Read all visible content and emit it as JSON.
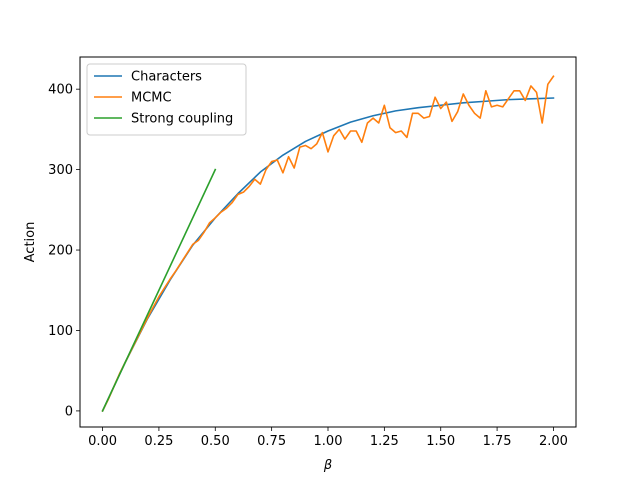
{
  "chart_data": {
    "type": "line",
    "title": "",
    "xlabel": "β",
    "ylabel": "Action",
    "xlim": [
      -0.1,
      2.1
    ],
    "ylim": [
      -20,
      440
    ],
    "xticks": [
      0.0,
      0.25,
      0.5,
      0.75,
      1.0,
      1.25,
      1.5,
      1.75,
      2.0
    ],
    "xtick_labels": [
      "0.00",
      "0.25",
      "0.50",
      "0.75",
      "1.00",
      "1.25",
      "1.50",
      "1.75",
      "2.00"
    ],
    "yticks": [
      0,
      100,
      200,
      300,
      400
    ],
    "ytick_labels": [
      "0",
      "100",
      "200",
      "300",
      "400"
    ],
    "grid": false,
    "legend_position": "top-left",
    "series": [
      {
        "name": "Characters",
        "color": "#1f77b4",
        "x": [
          0.0,
          0.1,
          0.2,
          0.3,
          0.4,
          0.5,
          0.6,
          0.7,
          0.8,
          0.9,
          1.0,
          1.1,
          1.2,
          1.3,
          1.4,
          1.5,
          1.6,
          1.7,
          1.8,
          1.9,
          2.0
        ],
        "y": [
          0,
          60,
          115,
          163,
          206,
          240,
          270,
          297,
          318,
          335,
          348,
          359,
          367,
          373,
          377,
          380,
          383,
          385,
          387,
          388,
          389
        ]
      },
      {
        "name": "MCMC",
        "color": "#ff7f0e",
        "x": [
          0.0,
          0.025,
          0.05,
          0.075,
          0.1,
          0.125,
          0.15,
          0.175,
          0.2,
          0.225,
          0.25,
          0.275,
          0.3,
          0.325,
          0.35,
          0.375,
          0.4,
          0.425,
          0.45,
          0.475,
          0.5,
          0.525,
          0.55,
          0.575,
          0.6,
          0.625,
          0.65,
          0.675,
          0.7,
          0.725,
          0.75,
          0.775,
          0.8,
          0.825,
          0.85,
          0.875,
          0.9,
          0.925,
          0.95,
          0.975,
          1.0,
          1.025,
          1.05,
          1.075,
          1.1,
          1.125,
          1.15,
          1.175,
          1.2,
          1.225,
          1.25,
          1.275,
          1.3,
          1.325,
          1.35,
          1.375,
          1.4,
          1.425,
          1.45,
          1.475,
          1.5,
          1.525,
          1.55,
          1.575,
          1.6,
          1.625,
          1.65,
          1.675,
          1.7,
          1.725,
          1.75,
          1.775,
          1.8,
          1.825,
          1.85,
          1.875,
          1.9,
          1.925,
          1.95,
          1.975,
          2.0
        ],
        "y": [
          0,
          14,
          30,
          46,
          60,
          74,
          88,
          102,
          116,
          129,
          142,
          153,
          164,
          174,
          185,
          196,
          207,
          212,
          222,
          234,
          240,
          247,
          252,
          259,
          269,
          272,
          279,
          288,
          282,
          300,
          310,
          312,
          296,
          316,
          302,
          328,
          330,
          326,
          332,
          346,
          322,
          342,
          350,
          338,
          348,
          348,
          334,
          358,
          364,
          358,
          380,
          352,
          346,
          348,
          340,
          370,
          370,
          364,
          366,
          390,
          376,
          384,
          360,
          372,
          394,
          380,
          370,
          364,
          398,
          378,
          380,
          378,
          388,
          398,
          398,
          386,
          404,
          396,
          358,
          406,
          416
        ]
      },
      {
        "name": "Strong coupling",
        "color": "#2ca02c",
        "x": [
          0.0,
          0.5
        ],
        "y": [
          0,
          300
        ]
      }
    ]
  }
}
